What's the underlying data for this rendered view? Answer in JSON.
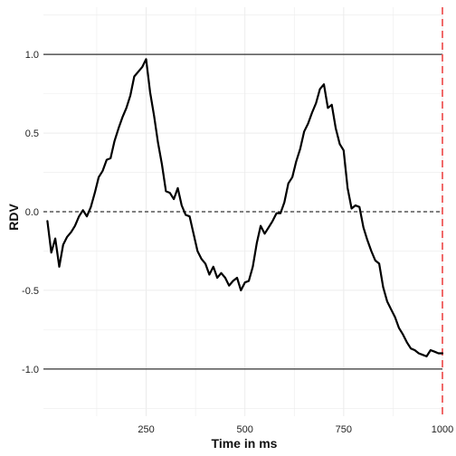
{
  "chart_data": {
    "type": "line",
    "xlabel": "Time in ms",
    "ylabel": "RDV",
    "xlim": [
      -10,
      1000
    ],
    "ylim": [
      -1.3,
      1.3
    ],
    "x_ticks": [
      250,
      500,
      750,
      1000
    ],
    "x_tick_labels": [
      "250",
      "500",
      "750",
      "1000"
    ],
    "y_ticks": [
      -1.0,
      -0.5,
      0.0,
      0.5,
      1.0
    ],
    "y_tick_labels": [
      "-1.0",
      "-0.5",
      "0.0",
      "0.5",
      "1.0"
    ],
    "grid": true,
    "reference_lines": {
      "upper_threshold": 1.0,
      "lower_threshold": -1.0,
      "zero_line": 0.0,
      "end_marker_x": 1000
    },
    "colors": {
      "series": "#000000",
      "threshold": "#333333",
      "zero_line": "#000000",
      "end_marker": "#ef5a5a",
      "grid": "#ececec"
    },
    "series": [
      {
        "x": [
          0,
          10,
          20,
          30,
          40,
          50,
          60,
          70,
          80,
          90,
          100,
          110,
          120,
          130,
          140,
          150,
          160,
          170,
          180,
          190,
          200,
          210,
          220,
          230,
          240,
          250,
          260,
          270,
          280,
          290,
          300,
          310,
          320,
          330,
          340,
          350,
          360,
          370,
          380,
          390,
          400,
          410,
          420,
          430,
          440,
          450,
          460,
          470,
          480,
          490,
          500,
          510,
          520,
          530,
          540,
          550,
          560,
          570,
          580,
          590,
          600,
          610,
          620,
          630,
          640,
          650,
          660,
          670,
          680,
          690,
          700,
          710,
          720,
          730,
          740,
          750,
          760,
          770,
          780,
          790,
          800,
          810,
          820,
          830,
          840,
          850,
          860,
          870,
          880,
          890,
          900,
          910,
          920,
          930,
          940,
          950,
          960,
          970,
          980,
          990,
          1000
        ],
        "y": [
          -0.06,
          -0.26,
          -0.17,
          -0.35,
          -0.21,
          -0.16,
          -0.13,
          -0.09,
          -0.03,
          0.01,
          -0.03,
          0.03,
          0.12,
          0.22,
          0.26,
          0.33,
          0.34,
          0.45,
          0.53,
          0.6,
          0.66,
          0.74,
          0.86,
          0.89,
          0.92,
          0.97,
          0.76,
          0.61,
          0.44,
          0.3,
          0.13,
          0.12,
          0.08,
          0.15,
          0.04,
          -0.02,
          -0.03,
          -0.14,
          -0.25,
          -0.3,
          -0.33,
          -0.4,
          -0.35,
          -0.42,
          -0.39,
          -0.42,
          -0.47,
          -0.44,
          -0.42,
          -0.5,
          -0.45,
          -0.44,
          -0.35,
          -0.2,
          -0.09,
          -0.14,
          -0.1,
          -0.06,
          -0.01,
          -0.01,
          0.06,
          0.18,
          0.22,
          0.32,
          0.4,
          0.51,
          0.56,
          0.63,
          0.69,
          0.78,
          0.81,
          0.66,
          0.68,
          0.53,
          0.43,
          0.39,
          0.15,
          0.02,
          0.04,
          0.03,
          -0.1,
          -0.18,
          -0.25,
          -0.31,
          -0.33,
          -0.48,
          -0.57,
          -0.62,
          -0.67,
          -0.74,
          -0.78,
          -0.83,
          -0.87,
          -0.88,
          -0.9,
          -0.91,
          -0.92,
          -0.88,
          -0.89,
          -0.9,
          -0.9
        ]
      }
    ]
  }
}
